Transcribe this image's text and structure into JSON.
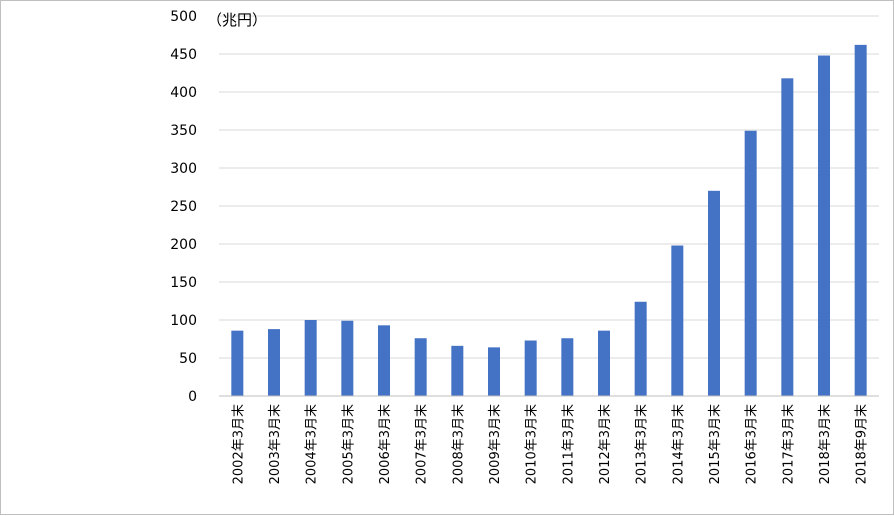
{
  "chart_data": {
    "type": "bar",
    "unit_label": "（兆円）",
    "categories": [
      "2002年3月末",
      "2003年3月末",
      "2004年3月末",
      "2005年3月末",
      "2006年3月末",
      "2007年3月末",
      "2008年3月末",
      "2009年3月末",
      "2010年3月末",
      "2011年3月末",
      "2012年3月末",
      "2013年3月末",
      "2014年3月末",
      "2015年3月末",
      "2016年3月末",
      "2017年3月末",
      "2018年3月末",
      "2018年9月末"
    ],
    "values": [
      86,
      88,
      100,
      99,
      93,
      76,
      66,
      64,
      73,
      76,
      86,
      124,
      198,
      270,
      349,
      418,
      448,
      462
    ],
    "ylim": [
      0,
      500
    ],
    "yticks": [
      0,
      50,
      100,
      150,
      200,
      250,
      300,
      350,
      400,
      450,
      500
    ],
    "grid": true,
    "bar_color": "#4472c4",
    "grid_color": "#d9d9d9"
  }
}
